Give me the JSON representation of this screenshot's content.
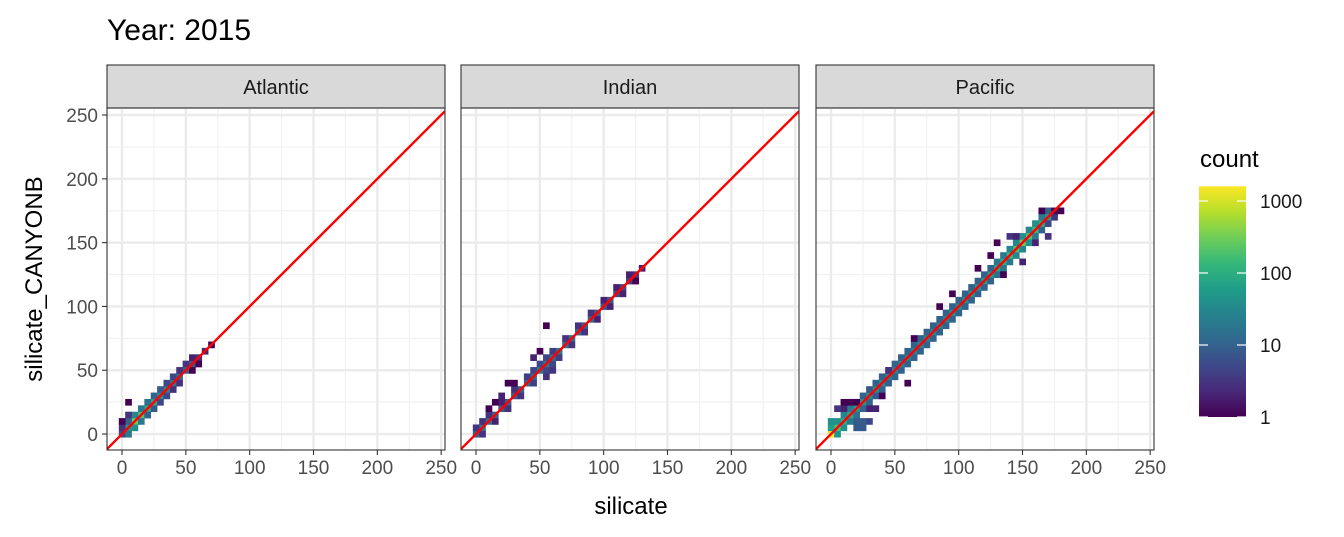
{
  "chart_data": {
    "type": "heatmap",
    "title": "Year: 2015",
    "xlabel": "silicate",
    "ylabel": "silicate_CANYONB",
    "xlim": [
      -11.75,
      253
    ],
    "ylim": [
      -12.5,
      255.5
    ],
    "x_ticks": [
      0,
      50,
      100,
      150,
      200,
      250
    ],
    "y_ticks": [
      0,
      50,
      100,
      150,
      200,
      250
    ],
    "bin_width": 5,
    "grid": true,
    "reference_line": {
      "slope": 1,
      "intercept": 0,
      "color": "#ff0000"
    },
    "legend": {
      "title": "count",
      "position": "right",
      "scale": "log10",
      "ticks": [
        1,
        10,
        100,
        1000
      ],
      "range": [
        1,
        1600
      ],
      "palette": "viridis"
    },
    "facets": [
      {
        "name": "Atlantic",
        "cells": [
          [
            0,
            0,
            5
          ],
          [
            5,
            5,
            50
          ],
          [
            10,
            10,
            300
          ],
          [
            15,
            15,
            200
          ],
          [
            20,
            20,
            100
          ],
          [
            25,
            25,
            80
          ],
          [
            30,
            30,
            40
          ],
          [
            35,
            35,
            30
          ],
          [
            40,
            40,
            20
          ],
          [
            45,
            45,
            15
          ],
          [
            50,
            50,
            10
          ],
          [
            55,
            55,
            8
          ],
          [
            60,
            60,
            3
          ],
          [
            65,
            65,
            2
          ],
          [
            70,
            70,
            1
          ],
          [
            0,
            5,
            3
          ],
          [
            5,
            10,
            10
          ],
          [
            10,
            15,
            30
          ],
          [
            15,
            20,
            20
          ],
          [
            20,
            25,
            15
          ],
          [
            25,
            30,
            10
          ],
          [
            30,
            35,
            8
          ],
          [
            35,
            40,
            5
          ],
          [
            40,
            45,
            5
          ],
          [
            45,
            50,
            3
          ],
          [
            50,
            55,
            3
          ],
          [
            55,
            60,
            2
          ],
          [
            5,
            0,
            20
          ],
          [
            10,
            5,
            40
          ],
          [
            15,
            10,
            20
          ],
          [
            20,
            15,
            10
          ],
          [
            25,
            20,
            8
          ],
          [
            30,
            25,
            5
          ],
          [
            35,
            30,
            5
          ],
          [
            40,
            35,
            3
          ],
          [
            45,
            40,
            3
          ],
          [
            55,
            50,
            1
          ],
          [
            60,
            55,
            1
          ],
          [
            5,
            25,
            1
          ],
          [
            0,
            10,
            1
          ],
          [
            5,
            15,
            3
          ]
        ]
      },
      {
        "name": "Indian",
        "cells": [
          [
            0,
            0,
            10
          ],
          [
            5,
            5,
            20
          ],
          [
            10,
            10,
            15
          ],
          [
            15,
            15,
            10
          ],
          [
            20,
            20,
            8
          ],
          [
            25,
            25,
            10
          ],
          [
            30,
            30,
            8
          ],
          [
            35,
            35,
            10
          ],
          [
            40,
            40,
            12
          ],
          [
            45,
            45,
            15
          ],
          [
            50,
            50,
            20
          ],
          [
            55,
            55,
            20
          ],
          [
            60,
            60,
            15
          ],
          [
            65,
            65,
            20
          ],
          [
            70,
            70,
            15
          ],
          [
            75,
            75,
            15
          ],
          [
            80,
            80,
            12
          ],
          [
            85,
            85,
            10
          ],
          [
            90,
            90,
            12
          ],
          [
            95,
            95,
            10
          ],
          [
            100,
            100,
            8
          ],
          [
            105,
            105,
            8
          ],
          [
            110,
            110,
            6
          ],
          [
            115,
            115,
            5
          ],
          [
            120,
            120,
            4
          ],
          [
            125,
            125,
            3
          ],
          [
            130,
            130,
            2
          ],
          [
            0,
            5,
            3
          ],
          [
            5,
            10,
            3
          ],
          [
            10,
            15,
            3
          ],
          [
            20,
            25,
            2
          ],
          [
            30,
            35,
            3
          ],
          [
            40,
            45,
            4
          ],
          [
            45,
            50,
            5
          ],
          [
            50,
            55,
            5
          ],
          [
            55,
            60,
            5
          ],
          [
            60,
            65,
            4
          ],
          [
            70,
            75,
            3
          ],
          [
            80,
            85,
            3
          ],
          [
            90,
            95,
            3
          ],
          [
            100,
            105,
            2
          ],
          [
            110,
            115,
            2
          ],
          [
            120,
            125,
            2
          ],
          [
            5,
            0,
            3
          ],
          [
            15,
            10,
            2
          ],
          [
            25,
            20,
            3
          ],
          [
            35,
            30,
            3
          ],
          [
            45,
            40,
            4
          ],
          [
            55,
            50,
            5
          ],
          [
            55,
            45,
            3
          ],
          [
            60,
            55,
            5
          ],
          [
            60,
            50,
            3
          ],
          [
            65,
            60,
            4
          ],
          [
            75,
            70,
            3
          ],
          [
            85,
            80,
            3
          ],
          [
            95,
            90,
            2
          ],
          [
            105,
            100,
            2
          ],
          [
            115,
            110,
            2
          ],
          [
            125,
            120,
            1
          ],
          [
            25,
            40,
            1
          ],
          [
            30,
            40,
            1
          ],
          [
            55,
            85,
            1
          ],
          [
            15,
            25,
            1
          ],
          [
            20,
            30,
            2
          ],
          [
            10,
            20,
            1
          ],
          [
            45,
            60,
            2
          ],
          [
            50,
            65,
            1
          ]
        ]
      },
      {
        "name": "Pacific",
        "cells": [
          [
            0,
            0,
            1500
          ],
          [
            5,
            5,
            200
          ],
          [
            10,
            10,
            100
          ],
          [
            15,
            15,
            80
          ],
          [
            20,
            20,
            60
          ],
          [
            25,
            25,
            50
          ],
          [
            30,
            30,
            40
          ],
          [
            35,
            35,
            40
          ],
          [
            40,
            40,
            40
          ],
          [
            45,
            45,
            30
          ],
          [
            50,
            50,
            30
          ],
          [
            55,
            55,
            30
          ],
          [
            60,
            60,
            30
          ],
          [
            65,
            65,
            30
          ],
          [
            70,
            70,
            30
          ],
          [
            75,
            75,
            30
          ],
          [
            80,
            80,
            30
          ],
          [
            85,
            85,
            30
          ],
          [
            90,
            90,
            30
          ],
          [
            95,
            95,
            40
          ],
          [
            100,
            100,
            40
          ],
          [
            105,
            105,
            40
          ],
          [
            110,
            110,
            50
          ],
          [
            115,
            115,
            50
          ],
          [
            120,
            120,
            60
          ],
          [
            125,
            125,
            60
          ],
          [
            130,
            130,
            80
          ],
          [
            135,
            135,
            100
          ],
          [
            140,
            140,
            150
          ],
          [
            145,
            145,
            200
          ],
          [
            150,
            150,
            300
          ],
          [
            155,
            155,
            200
          ],
          [
            160,
            160,
            150
          ],
          [
            165,
            165,
            100
          ],
          [
            170,
            170,
            60
          ],
          [
            0,
            5,
            60
          ],
          [
            0,
            10,
            40
          ],
          [
            5,
            10,
            40
          ],
          [
            10,
            15,
            30
          ],
          [
            15,
            20,
            20
          ],
          [
            20,
            25,
            15
          ],
          [
            25,
            30,
            10
          ],
          [
            30,
            35,
            8
          ],
          [
            35,
            40,
            10
          ],
          [
            40,
            45,
            10
          ],
          [
            45,
            50,
            10
          ],
          [
            50,
            55,
            10
          ],
          [
            55,
            60,
            10
          ],
          [
            60,
            65,
            10
          ],
          [
            65,
            70,
            10
          ],
          [
            70,
            75,
            10
          ],
          [
            75,
            80,
            10
          ],
          [
            80,
            85,
            10
          ],
          [
            85,
            90,
            10
          ],
          [
            90,
            95,
            10
          ],
          [
            95,
            100,
            10
          ],
          [
            100,
            105,
            10
          ],
          [
            105,
            110,
            10
          ],
          [
            110,
            115,
            10
          ],
          [
            115,
            120,
            10
          ],
          [
            120,
            125,
            10
          ],
          [
            125,
            130,
            10
          ],
          [
            130,
            135,
            20
          ],
          [
            135,
            140,
            20
          ],
          [
            140,
            145,
            30
          ],
          [
            145,
            150,
            30
          ],
          [
            150,
            155,
            40
          ],
          [
            155,
            160,
            30
          ],
          [
            160,
            165,
            40
          ],
          [
            165,
            170,
            20
          ],
          [
            170,
            175,
            10
          ],
          [
            5,
            0,
            50
          ],
          [
            10,
            5,
            40
          ],
          [
            15,
            10,
            20
          ],
          [
            20,
            15,
            15
          ],
          [
            25,
            20,
            10
          ],
          [
            30,
            25,
            10
          ],
          [
            35,
            30,
            8
          ],
          [
            40,
            35,
            10
          ],
          [
            45,
            40,
            10
          ],
          [
            50,
            45,
            10
          ],
          [
            55,
            50,
            10
          ],
          [
            60,
            55,
            10
          ],
          [
            65,
            60,
            10
          ],
          [
            70,
            65,
            10
          ],
          [
            75,
            70,
            10
          ],
          [
            80,
            75,
            10
          ],
          [
            85,
            80,
            10
          ],
          [
            90,
            85,
            10
          ],
          [
            95,
            90,
            10
          ],
          [
            100,
            95,
            10
          ],
          [
            105,
            100,
            10
          ],
          [
            110,
            105,
            10
          ],
          [
            115,
            110,
            10
          ],
          [
            120,
            115,
            10
          ],
          [
            125,
            120,
            10
          ],
          [
            130,
            125,
            15
          ],
          [
            135,
            130,
            20
          ],
          [
            140,
            135,
            20
          ],
          [
            145,
            140,
            30
          ],
          [
            150,
            145,
            30
          ],
          [
            155,
            150,
            40
          ],
          [
            160,
            155,
            20
          ],
          [
            165,
            160,
            10
          ],
          [
            170,
            165,
            5
          ],
          [
            175,
            170,
            3
          ],
          [
            20,
            10,
            8
          ],
          [
            25,
            10,
            8
          ],
          [
            20,
            5,
            8
          ],
          [
            25,
            5,
            8
          ],
          [
            30,
            10,
            5
          ],
          [
            10,
            20,
            2
          ],
          [
            15,
            25,
            1
          ],
          [
            20,
            25,
            1
          ],
          [
            5,
            20,
            3
          ],
          [
            10,
            25,
            1
          ],
          [
            60,
            40,
            1
          ],
          [
            40,
            30,
            1
          ],
          [
            35,
            20,
            2
          ],
          [
            30,
            20,
            2
          ],
          [
            45,
            50,
            3
          ],
          [
            65,
            75,
            1
          ],
          [
            85,
            100,
            1
          ],
          [
            95,
            110,
            1
          ],
          [
            115,
            130,
            1
          ],
          [
            125,
            140,
            1
          ],
          [
            130,
            150,
            1
          ],
          [
            135,
            125,
            1
          ],
          [
            140,
            155,
            3
          ],
          [
            150,
            135,
            2
          ],
          [
            165,
            175,
            1
          ],
          [
            175,
            175,
            1
          ],
          [
            180,
            175,
            1
          ],
          [
            170,
            155,
            3
          ],
          [
            160,
            150,
            2
          ],
          [
            145,
            155,
            2
          ]
        ]
      }
    ]
  }
}
